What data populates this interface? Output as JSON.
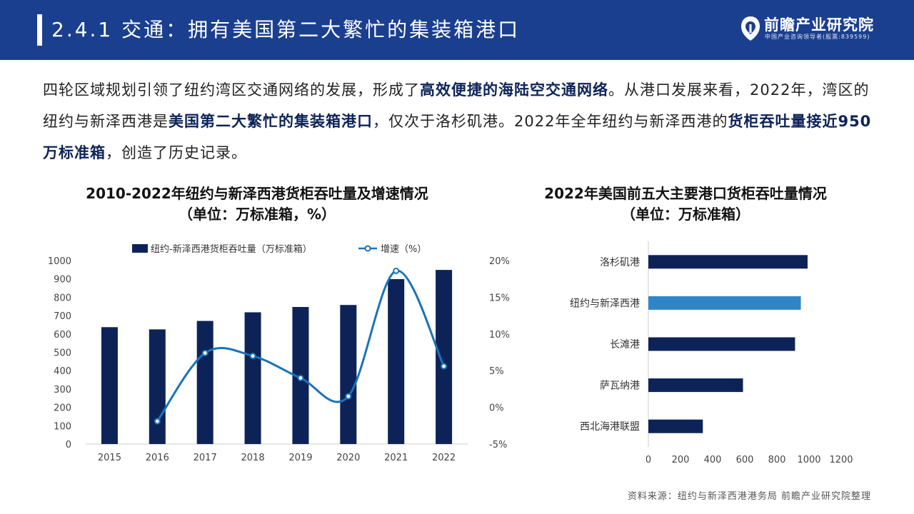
{
  "header": {
    "title": "2.4.1 交通：拥有美国第二大繁忙的集装箱港口",
    "logo_name": "前瞻产业研究院",
    "logo_sub": "中国产业咨询领导者(股票:839599)"
  },
  "intro": {
    "p1": "四轮区域规划引领了纽约湾区交通网络的发展，形成了",
    "b1": "高效便捷的海陆空交通网络",
    "p2": "。从港口发展来看，2022年，湾区的纽约与新泽西港是",
    "b2": "美国第二大繁忙的集装箱港口",
    "p3": "，仅次于洛杉矶港。2022年全年纽约与新泽西港的",
    "b3": "货柜吞吐量接近950万标准箱",
    "p4": "，创造了历史记录。"
  },
  "colors": {
    "header_bg": "#1b3f8f",
    "navy": "#0d2358",
    "accent_blue": "#2e86c9",
    "line_blue": "#1a73b8"
  },
  "chart_data": [
    {
      "type": "bar",
      "title_line1": "2010-2022年纽约与新泽西港货柜吞吐量及增速情况",
      "title_line2": "（单位：万标准箱，%）",
      "categories": [
        "2015",
        "2016",
        "2017",
        "2018",
        "2019",
        "2020",
        "2021",
        "2022"
      ],
      "series": [
        {
          "name": "纽约-新泽西港货柜吞吐量（万标准箱）",
          "type": "bar",
          "axis": "left",
          "values": [
            637,
            625,
            671,
            718,
            747,
            758,
            899,
            949
          ]
        },
        {
          "name": "增速（%）",
          "type": "line",
          "axis": "right",
          "values": [
            null,
            -1.9,
            7.4,
            7.0,
            4.0,
            1.5,
            18.6,
            5.6
          ]
        }
      ],
      "ylim": [
        0,
        1000
      ],
      "yticks": [
        "1000",
        "900",
        "800",
        "700",
        "600",
        "500",
        "400",
        "300",
        "200",
        "100",
        "0"
      ],
      "y2lim": [
        -5,
        20
      ],
      "y2ticks": [
        "20%",
        "15%",
        "10%",
        "5%",
        "0%",
        "-5%"
      ],
      "legend": "top",
      "grid": false
    },
    {
      "type": "bar",
      "orientation": "horizontal",
      "title_line1": "2022年美国前五大主要港口货柜吞吐量情况",
      "title_line2": "（单位：万标准箱）",
      "categories": [
        "洛杉矶港",
        "纽约与新泽西港",
        "长滩港",
        "萨瓦纳港",
        "西北海港联盟"
      ],
      "values": [
        991,
        949,
        913,
        589,
        339
      ],
      "highlight": "纽约与新泽西港",
      "xlim": [
        0,
        1200
      ],
      "xticks": [
        "0",
        "200",
        "400",
        "600",
        "800",
        "1000",
        "1200"
      ],
      "grid": false
    }
  ],
  "source": "资料来源：纽约与新泽西港港务局 前瞻产业研究院整理"
}
